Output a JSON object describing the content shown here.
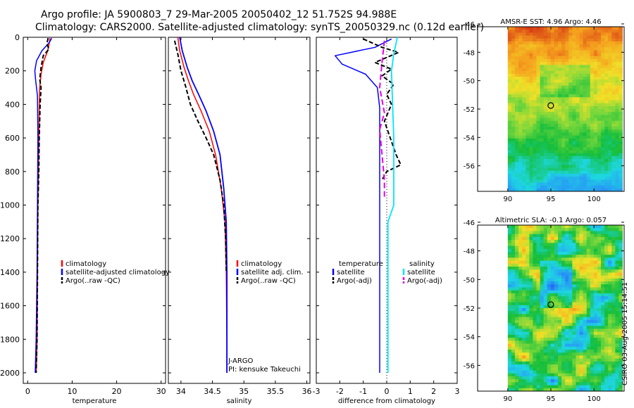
{
  "title": {
    "line1": "Argo profile: JA 5900803_7 29-Mar-2005 20050402_12 51.752S 94.988E",
    "line2": "Climatology: CARS2000. Satellite-adjusted climatology: synTS_20050329.nc (0.12d earlier)"
  },
  "footer_stamp": "CSIRO 03-Aug-2005 15:14:51",
  "colors": {
    "climatology": "#ff0000",
    "satellite": "#0000ff",
    "argo": "#000000",
    "cyan": "#00e5ff",
    "magenta": "#e600e6"
  },
  "chart_data": [
    {
      "type": "line",
      "panel": "temperature",
      "xlabel": "temperature",
      "xlim": [
        -1,
        31
      ],
      "ylim": [
        0,
        2050
      ],
      "y_reversed": true,
      "xticks": [
        0,
        10,
        20,
        30
      ],
      "yticks": [
        0,
        200,
        400,
        600,
        800,
        1000,
        1200,
        1400,
        1600,
        1800,
        2000
      ],
      "series": [
        {
          "name": "climatology",
          "color": "#ff0000",
          "dash": "",
          "width": 1.5,
          "x": [
            5.0,
            4.9,
            4.5,
            3.5,
            3.0,
            2.7,
            2.6,
            2.5,
            2.4,
            2.3,
            2.2,
            2.1,
            1.9
          ],
          "y": [
            5,
            30,
            80,
            150,
            220,
            300,
            400,
            600,
            800,
            1000,
            1400,
            1800,
            2000
          ]
        },
        {
          "name": "satellite-adjusted climatology",
          "color": "#0000ff",
          "dash": "",
          "width": 1.5,
          "x": [
            5.4,
            4.9,
            3.2,
            2.0,
            1.6,
            1.8,
            2.2,
            2.3,
            2.2,
            2.1,
            1.9,
            1.7
          ],
          "y": [
            5,
            30,
            80,
            140,
            200,
            260,
            350,
            600,
            1000,
            1400,
            1800,
            2000
          ]
        },
        {
          "name": "Argo(..raw -QC)",
          "color": "#000000",
          "dash": "6,3",
          "width": 2,
          "x": [
            4.6,
            4.3,
            4.8,
            3.5,
            3.0,
            2.7,
            3.0,
            2.8,
            2.6,
            2.5,
            2.3,
            2.2,
            2.1,
            1.9
          ],
          "y": [
            5,
            40,
            70,
            110,
            180,
            250,
            300,
            400,
            600,
            800,
            1000,
            1400,
            1800,
            2000
          ]
        }
      ],
      "legend": [
        "climatology",
        "satellite-adjusted climatology",
        "Argo(..raw -QC)"
      ],
      "legend_position": "right"
    },
    {
      "type": "line",
      "panel": "salinity",
      "xlabel": "salinity",
      "xlim": [
        33.8,
        36.05
      ],
      "ylim": [
        0,
        2050
      ],
      "y_reversed": true,
      "xticks": [
        34,
        34.5,
        35,
        35.5,
        36
      ],
      "xtick_labels": [
        "34",
        "34.5",
        "35",
        "35.5",
        "36"
      ],
      "series": [
        {
          "name": "climatology",
          "color": "#ff0000",
          "dash": "",
          "width": 1.5,
          "x": [
            33.95,
            33.98,
            34.05,
            34.12,
            34.2,
            34.32,
            34.45,
            34.55,
            34.64,
            34.7,
            34.72,
            34.73,
            34.73
          ],
          "y": [
            0,
            80,
            180,
            260,
            340,
            440,
            560,
            700,
            900,
            1100,
            1400,
            1800,
            2000
          ]
        },
        {
          "name": "satellite adj. clim.",
          "color": "#0000ff",
          "dash": "",
          "width": 1.8,
          "x": [
            33.98,
            34.02,
            34.1,
            34.18,
            34.28,
            34.4,
            34.52,
            34.62,
            34.68,
            34.72,
            34.73,
            34.73,
            34.73
          ],
          "y": [
            0,
            80,
            180,
            260,
            340,
            440,
            560,
            700,
            900,
            1100,
            1400,
            1800,
            2000
          ]
        },
        {
          "name": "Argo(..raw -QC)",
          "color": "#000000",
          "dash": "6,3",
          "width": 2,
          "x": [
            33.9,
            33.95,
            34.0,
            34.08,
            34.15,
            34.27,
            34.4,
            34.52,
            34.62,
            34.68,
            34.71,
            34.72
          ],
          "y": [
            20,
            100,
            200,
            300,
            400,
            500,
            600,
            700,
            850,
            1000,
            1200,
            1400
          ]
        }
      ],
      "legend": [
        "climatology",
        "satellite adj. clim.",
        "Argo(..raw -QC)"
      ],
      "legend_position": "right",
      "annotations": [
        "J-ARGO",
        "PI: kensuke Takeuchi"
      ]
    },
    {
      "type": "line",
      "panel": "difference",
      "xlabel": "difference from climatology",
      "xlim": [
        -3,
        3
      ],
      "ylim": [
        0,
        2050
      ],
      "y_reversed": true,
      "xticks": [
        -3,
        -2,
        -1,
        0,
        1,
        2,
        3
      ],
      "series": [
        {
          "name": "temperature satellite",
          "color": "#0000ff",
          "dash": "",
          "width": 1.5,
          "x": [
            0.2,
            -0.5,
            -2.2,
            -1.9,
            -0.9,
            -0.4,
            -0.3,
            -0.3,
            -0.3,
            -0.3,
            -0.3,
            -0.3,
            -0.3
          ],
          "y": [
            10,
            60,
            110,
            160,
            220,
            300,
            420,
            600,
            800,
            1000,
            1400,
            1800,
            2000
          ]
        },
        {
          "name": "temperature Argo(-adj)",
          "color": "#000000",
          "dash": "6,3",
          "width": 2,
          "x": [
            -1.0,
            -0.2,
            0.5,
            -0.5,
            0.2,
            -0.2,
            0.3,
            0.0,
            0.2,
            -0.1,
            0.4,
            0.6,
            0.0,
            -0.2
          ],
          "y": [
            10,
            60,
            90,
            150,
            190,
            230,
            280,
            340,
            400,
            500,
            700,
            760,
            800,
            850
          ]
        },
        {
          "name": "salinity satellite",
          "color": "#00e5ff",
          "dash": "",
          "width": 1.8,
          "x": [
            0.45,
            0.3,
            0.2,
            0.25,
            0.3,
            0.3,
            0.3,
            0.05,
            0.05,
            0.05
          ],
          "y": [
            0,
            100,
            200,
            400,
            600,
            800,
            1000,
            1100,
            1400,
            2000
          ]
        },
        {
          "name": "salinity Argo(-adj)",
          "color": "#e600e6",
          "dash": "8,4",
          "width": 2,
          "x": [
            -0.1,
            -0.2,
            -0.3,
            -0.1,
            -0.3,
            -0.2,
            -0.1,
            -0.1
          ],
          "y": [
            20,
            150,
            300,
            450,
            550,
            700,
            850,
            950
          ]
        }
      ],
      "legend_left": [
        "temperature",
        "satellite",
        "Argo(-adj)"
      ],
      "legend_right": [
        "salinity",
        "satellite",
        "Argo(-adj)"
      ]
    },
    {
      "type": "heatmap",
      "panel": "sst-map",
      "title": "AMSR-E SST: 4.96 Argo: 4.46",
      "xlim": [
        86.5,
        103.5
      ],
      "ylim": [
        -57.8,
        -46.2
      ],
      "xticks": [
        90,
        95,
        100
      ],
      "yticks": [
        -46,
        -48,
        -50,
        -52,
        -54,
        -56
      ],
      "marker": [
        94.988,
        -51.752
      ]
    },
    {
      "type": "heatmap",
      "panel": "sla-map",
      "title": "Altimetric SLA: -0.1 Argo: 0.057",
      "xlim": [
        86.5,
        103.5
      ],
      "ylim": [
        -57.8,
        -46.2
      ],
      "xticks": [
        90,
        95,
        100
      ],
      "yticks": [
        -46,
        -48,
        -50,
        -52,
        -54,
        -56
      ],
      "marker": [
        94.988,
        -51.752
      ]
    }
  ]
}
